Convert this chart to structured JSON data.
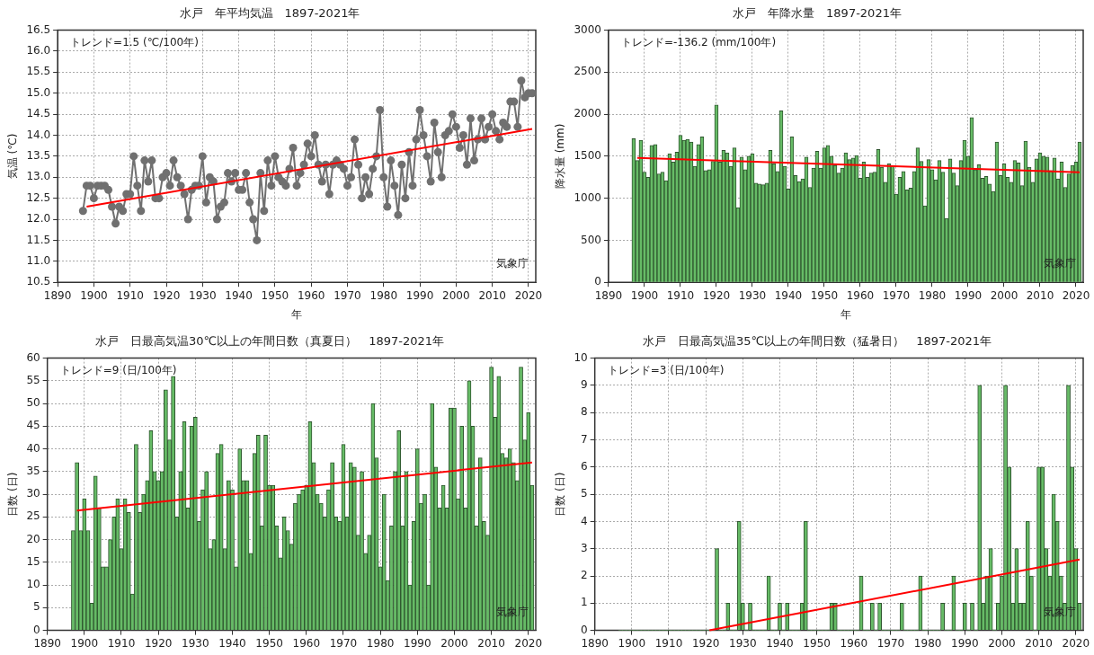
{
  "chart_data": [
    {
      "type": "line",
      "title": "水戸　年平均気温　1897-2021年",
      "xlabel": "年",
      "ylabel": "気温 (℃)",
      "grid": true,
      "legend": false,
      "annotations": [
        "トレンド=1.5 (℃/100年)",
        "気象庁"
      ],
      "xlim": [
        1890,
        2022
      ],
      "xticks": [
        1890,
        1900,
        1910,
        1920,
        1930,
        1940,
        1950,
        1960,
        1970,
        1980,
        1990,
        2000,
        2010,
        2020
      ],
      "ylim": [
        10.5,
        16.5
      ],
      "yticks": [
        10.5,
        {
          "value": 11,
          "label": "11.0"
        },
        11.5,
        {
          "value": 12,
          "label": "12.0"
        },
        12.5,
        {
          "value": 13,
          "label": "13.0"
        },
        13.5,
        {
          "value": 14,
          "label": "14.0"
        },
        14.5,
        {
          "value": 15,
          "label": "15.0"
        },
        15.5,
        {
          "value": 16,
          "label": "16.0"
        },
        16.5
      ],
      "x": [
        1897,
        1898,
        1899,
        1900,
        1901,
        1902,
        1903,
        1904,
        1905,
        1906,
        1907,
        1908,
        1909,
        1910,
        1911,
        1912,
        1913,
        1914,
        1915,
        1916,
        1917,
        1918,
        1919,
        1920,
        1921,
        1922,
        1923,
        1924,
        1925,
        1926,
        1927,
        1928,
        1929,
        1930,
        1931,
        1932,
        1933,
        1934,
        1935,
        1936,
        1937,
        1938,
        1939,
        1940,
        1941,
        1942,
        1943,
        1944,
        1945,
        1946,
        1947,
        1948,
        1949,
        1950,
        1951,
        1952,
        1953,
        1954,
        1955,
        1956,
        1957,
        1958,
        1959,
        1960,
        1961,
        1962,
        1963,
        1964,
        1965,
        1966,
        1967,
        1968,
        1969,
        1970,
        1971,
        1972,
        1973,
        1974,
        1975,
        1976,
        1977,
        1978,
        1979,
        1980,
        1981,
        1982,
        1983,
        1984,
        1985,
        1986,
        1987,
        1988,
        1989,
        1990,
        1991,
        1992,
        1993,
        1994,
        1995,
        1996,
        1997,
        1998,
        1999,
        2000,
        2001,
        2002,
        2003,
        2004,
        2005,
        2006,
        2007,
        2008,
        2009,
        2010,
        2011,
        2012,
        2013,
        2014,
        2015,
        2016,
        2017,
        2018,
        2019,
        2020,
        2021
      ],
      "series": [
        {
          "color": "#707070",
          "marker": "circle",
          "line_style": "solid",
          "values": [
            12.2,
            12.8,
            12.8,
            12.5,
            12.8,
            12.8,
            12.8,
            12.7,
            12.3,
            11.9,
            12.3,
            12.2,
            12.6,
            12.6,
            13.5,
            12.8,
            12.2,
            13.4,
            12.9,
            13.4,
            12.5,
            12.5,
            13.0,
            13.1,
            12.8,
            13.4,
            13.0,
            12.8,
            12.6,
            12.0,
            12.7,
            12.8,
            12.8,
            13.5,
            12.4,
            13.0,
            12.9,
            12.0,
            12.3,
            12.4,
            13.1,
            12.9,
            13.1,
            12.7,
            12.7,
            13.1,
            12.4,
            12.0,
            11.5,
            13.1,
            12.2,
            13.4,
            12.8,
            13.5,
            13.0,
            12.9,
            12.8,
            13.2,
            13.7,
            12.8,
            13.1,
            13.3,
            13.8,
            13.5,
            14.0,
            13.3,
            12.9,
            13.3,
            12.6,
            13.3,
            13.4,
            13.3,
            13.2,
            12.8,
            13.0,
            13.9,
            13.3,
            12.5,
            13.0,
            12.6,
            13.2,
            13.5,
            14.6,
            13.0,
            12.3,
            13.4,
            12.8,
            12.1,
            13.3,
            12.5,
            13.6,
            12.8,
            13.9,
            14.6,
            14.0,
            13.5,
            12.9,
            14.3,
            13.6,
            13.0,
            14.0,
            14.1,
            14.5,
            14.2,
            13.7,
            14.0,
            13.3,
            14.4,
            13.4,
            13.9,
            14.4,
            13.9,
            14.2,
            14.5,
            14.1,
            13.9,
            14.3,
            14.2,
            14.8,
            14.8,
            14.2,
            15.3,
            14.9,
            15.0,
            15.0
          ]
        },
        {
          "type": "line",
          "color": "#ff0000",
          "line_style": "solid",
          "x": [
            1898,
            2021
          ],
          "values": [
            12.3,
            14.15
          ]
        }
      ]
    },
    {
      "type": "bar",
      "title": "水戸　年降水量　1897-2021年",
      "xlabel": "年",
      "ylabel": "降水量 (mm)",
      "grid": true,
      "legend": false,
      "annotations": [
        "トレンド=-136.2 (mm/100年)",
        "気象庁"
      ],
      "xlim": [
        1890,
        2022
      ],
      "xticks": [
        1890,
        1900,
        1910,
        1920,
        1930,
        1940,
        1950,
        1960,
        1970,
        1980,
        1990,
        2000,
        2010,
        2020
      ],
      "ylim": [
        0,
        3000
      ],
      "yticks": [
        0,
        500,
        1000,
        1500,
        2000,
        2500,
        3000
      ],
      "x": [
        1897,
        1898,
        1899,
        1900,
        1901,
        1902,
        1903,
        1904,
        1905,
        1906,
        1907,
        1908,
        1909,
        1910,
        1911,
        1912,
        1913,
        1914,
        1915,
        1916,
        1917,
        1918,
        1919,
        1920,
        1921,
        1922,
        1923,
        1924,
        1925,
        1926,
        1927,
        1928,
        1929,
        1930,
        1931,
        1932,
        1933,
        1934,
        1935,
        1936,
        1937,
        1938,
        1939,
        1940,
        1941,
        1942,
        1943,
        1944,
        1945,
        1946,
        1947,
        1948,
        1949,
        1950,
        1951,
        1952,
        1953,
        1954,
        1955,
        1956,
        1957,
        1958,
        1959,
        1960,
        1961,
        1962,
        1963,
        1964,
        1965,
        1966,
        1967,
        1968,
        1969,
        1970,
        1971,
        1972,
        1973,
        1974,
        1975,
        1976,
        1977,
        1978,
        1979,
        1980,
        1981,
        1982,
        1983,
        1984,
        1985,
        1986,
        1987,
        1988,
        1989,
        1990,
        1991,
        1992,
        1993,
        1994,
        1995,
        1996,
        1997,
        1998,
        1999,
        2000,
        2001,
        2002,
        2003,
        2004,
        2005,
        2006,
        2007,
        2008,
        2009,
        2010,
        2011,
        2012,
        2013,
        2014,
        2015,
        2016,
        2017,
        2018,
        2019,
        2020,
        2021
      ],
      "series": [
        {
          "color": "#66bb66",
          "values": [
            1710,
            1450,
            1690,
            1310,
            1250,
            1630,
            1640,
            1290,
            1310,
            1210,
            1530,
            1430,
            1550,
            1750,
            1690,
            1700,
            1670,
            1380,
            1640,
            1730,
            1330,
            1340,
            1440,
            2110,
            1430,
            1570,
            1540,
            1380,
            1600,
            890,
            1490,
            1340,
            1500,
            1530,
            1180,
            1170,
            1160,
            1180,
            1570,
            1410,
            1320,
            2040,
            1380,
            1110,
            1730,
            1270,
            1200,
            1230,
            1490,
            1130,
            1360,
            1560,
            1360,
            1600,
            1630,
            1500,
            1390,
            1300,
            1360,
            1540,
            1460,
            1480,
            1510,
            1240,
            1430,
            1250,
            1300,
            1310,
            1580,
            1370,
            1190,
            1410,
            1380,
            1050,
            1250,
            1320,
            1100,
            1120,
            1320,
            1600,
            1440,
            910,
            1460,
            1340,
            1220,
            1450,
            1310,
            760,
            1470,
            1300,
            1150,
            1450,
            1690,
            1500,
            1960,
            1340,
            1400,
            1240,
            1260,
            1170,
            1080,
            1670,
            1270,
            1410,
            1250,
            1190,
            1450,
            1420,
            1150,
            1680,
            1370,
            1190,
            1470,
            1540,
            1500,
            1490,
            1330,
            1480,
            1230,
            1430,
            1130,
            1290,
            1390,
            1430,
            1670
          ]
        },
        {
          "type": "line",
          "color": "#ff0000",
          "line_style": "solid",
          "x": [
            1898,
            2021
          ],
          "values": [
            1480,
            1310
          ]
        }
      ]
    },
    {
      "type": "bar",
      "title": "水戸　日最高気温30℃以上の年間日数（真夏日）　1897-2021年",
      "ylabel": "日数 (日)",
      "grid": true,
      "legend": false,
      "annotations": [
        "トレンド=9 (日/100年)",
        "気象庁"
      ],
      "xlim": [
        1890,
        2022
      ],
      "xticks": [
        1890,
        1900,
        1910,
        1920,
        1930,
        1940,
        1950,
        1960,
        1970,
        1980,
        1990,
        2000,
        2010,
        2020
      ],
      "ylim": [
        0,
        60
      ],
      "yticks": [
        0,
        5,
        10,
        15,
        20,
        25,
        30,
        35,
        40,
        45,
        50,
        55,
        60
      ],
      "x": [
        1897,
        1898,
        1899,
        1900,
        1901,
        1902,
        1903,
        1904,
        1905,
        1906,
        1907,
        1908,
        1909,
        1910,
        1911,
        1912,
        1913,
        1914,
        1915,
        1916,
        1917,
        1918,
        1919,
        1920,
        1921,
        1922,
        1923,
        1924,
        1925,
        1926,
        1927,
        1928,
        1929,
        1930,
        1931,
        1932,
        1933,
        1934,
        1935,
        1936,
        1937,
        1938,
        1939,
        1940,
        1941,
        1942,
        1943,
        1944,
        1945,
        1946,
        1947,
        1948,
        1949,
        1950,
        1951,
        1952,
        1953,
        1954,
        1955,
        1956,
        1957,
        1958,
        1959,
        1960,
        1961,
        1962,
        1963,
        1964,
        1965,
        1966,
        1967,
        1968,
        1969,
        1970,
        1971,
        1972,
        1973,
        1974,
        1975,
        1976,
        1977,
        1978,
        1979,
        1980,
        1981,
        1982,
        1983,
        1984,
        1985,
        1986,
        1987,
        1988,
        1989,
        1990,
        1991,
        1992,
        1993,
        1994,
        1995,
        1996,
        1997,
        1998,
        1999,
        2000,
        2001,
        2002,
        2003,
        2004,
        2005,
        2006,
        2007,
        2008,
        2009,
        2010,
        2011,
        2012,
        2013,
        2014,
        2015,
        2016,
        2017,
        2018,
        2019,
        2020,
        2021
      ],
      "series": [
        {
          "color": "#66bb66",
          "values": [
            22,
            37,
            22,
            29,
            22,
            6,
            34,
            27,
            14,
            14,
            20,
            25,
            29,
            18,
            29,
            26,
            8,
            41,
            26,
            30,
            33,
            44,
            35,
            33,
            35,
            53,
            42,
            56,
            25,
            35,
            46,
            27,
            45,
            47,
            24,
            31,
            35,
            18,
            20,
            39,
            41,
            18,
            33,
            31,
            14,
            40,
            33,
            33,
            17,
            39,
            43,
            23,
            43,
            32,
            32,
            23,
            16,
            25,
            22,
            19,
            28,
            30,
            31,
            32,
            46,
            37,
            30,
            28,
            25,
            31,
            37,
            25,
            24,
            41,
            25,
            37,
            36,
            21,
            35,
            17,
            21,
            50,
            38,
            14,
            30,
            11,
            23,
            35,
            44,
            23,
            35,
            10,
            24,
            40,
            28,
            30,
            10,
            50,
            36,
            27,
            32,
            27,
            49,
            49,
            29,
            45,
            27,
            55,
            45,
            23,
            38,
            24,
            21,
            58,
            47,
            56,
            39,
            38,
            40,
            37,
            33,
            58,
            42,
            48,
            32
          ]
        },
        {
          "type": "line",
          "color": "#ff0000",
          "line_style": "solid",
          "x": [
            1898,
            2021
          ],
          "values": [
            26.4,
            37.0
          ]
        }
      ]
    },
    {
      "type": "bar",
      "title": "水戸　日最高気温35℃以上の年間日数（猛暑日）　1897-2021年",
      "ylabel": "日数 (日)",
      "grid": true,
      "legend": false,
      "annotations": [
        "トレンド=3 (日/100年)",
        "気象庁"
      ],
      "xlim": [
        1890,
        2022
      ],
      "xticks": [
        1890,
        1900,
        1910,
        1920,
        1930,
        1940,
        1950,
        1960,
        1970,
        1980,
        1990,
        2000,
        2010,
        2020
      ],
      "ylim": [
        0,
        10
      ],
      "yticks": [
        0,
        1,
        2,
        3,
        4,
        5,
        6,
        7,
        8,
        9,
        10
      ],
      "x": [
        1897,
        1898,
        1899,
        1900,
        1901,
        1902,
        1903,
        1904,
        1905,
        1906,
        1907,
        1908,
        1909,
        1910,
        1911,
        1912,
        1913,
        1914,
        1915,
        1916,
        1917,
        1918,
        1919,
        1920,
        1921,
        1922,
        1923,
        1924,
        1925,
        1926,
        1927,
        1928,
        1929,
        1930,
        1931,
        1932,
        1933,
        1934,
        1935,
        1936,
        1937,
        1938,
        1939,
        1940,
        1941,
        1942,
        1943,
        1944,
        1945,
        1946,
        1947,
        1948,
        1949,
        1950,
        1951,
        1952,
        1953,
        1954,
        1955,
        1956,
        1957,
        1958,
        1959,
        1960,
        1961,
        1962,
        1963,
        1964,
        1965,
        1966,
        1967,
        1968,
        1969,
        1970,
        1971,
        1972,
        1973,
        1974,
        1975,
        1976,
        1977,
        1978,
        1979,
        1980,
        1981,
        1982,
        1983,
        1984,
        1985,
        1986,
        1987,
        1988,
        1989,
        1990,
        1991,
        1992,
        1993,
        1994,
        1995,
        1996,
        1997,
        1998,
        1999,
        2000,
        2001,
        2002,
        2003,
        2004,
        2005,
        2006,
        2007,
        2008,
        2009,
        2010,
        2011,
        2012,
        2013,
        2014,
        2015,
        2016,
        2017,
        2018,
        2019,
        2020,
        2021
      ],
      "series": [
        {
          "color": "#66bb66",
          "values": [
            0,
            0,
            0,
            0,
            0,
            0,
            0,
            0,
            0,
            0,
            0,
            0,
            0,
            0,
            0,
            0,
            0,
            0,
            0,
            0,
            0,
            0,
            0,
            0,
            0,
            0,
            3,
            0,
            0,
            1,
            0,
            0,
            4,
            1,
            0,
            1,
            0,
            0,
            0,
            0,
            2,
            0,
            0,
            1,
            0,
            1,
            0,
            0,
            0,
            1,
            4,
            0,
            0,
            0,
            0,
            0,
            0,
            1,
            1,
            0,
            0,
            0,
            0,
            0,
            0,
            2,
            0,
            0,
            1,
            0,
            1,
            0,
            0,
            0,
            0,
            0,
            1,
            0,
            0,
            0,
            0,
            2,
            0,
            0,
            0,
            0,
            0,
            1,
            0,
            0,
            2,
            0,
            0,
            1,
            0,
            1,
            0,
            9,
            1,
            2,
            3,
            0,
            1,
            2,
            9,
            6,
            1,
            3,
            1,
            1,
            4,
            2,
            0,
            6,
            6,
            3,
            2,
            5,
            4,
            2,
            1,
            9,
            6,
            3,
            1
          ]
        },
        {
          "type": "line",
          "color": "#ff0000",
          "line_style": "solid",
          "x": [
            1921,
            2021
          ],
          "values": [
            0,
            2.6
          ]
        }
      ]
    }
  ]
}
